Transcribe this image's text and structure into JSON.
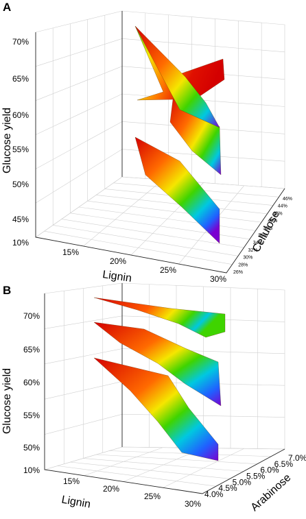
{
  "chart_data": [
    {
      "panel": "A",
      "type": "surface-3d",
      "xlabel": "Lignin",
      "ylabel": "Glucose yield",
      "zlabel": "Cellulose",
      "x_ticks": [
        "15%",
        "20%",
        "25%",
        "30%"
      ],
      "y_ticks": [
        "10%",
        "45%",
        "50%",
        "55%",
        "60%",
        "65%",
        "70%"
      ],
      "z_ticks": [
        "26%",
        "28%",
        "30%",
        "32%",
        "34%",
        "36%",
        "38%",
        "40%",
        "42%",
        "44%",
        "46%"
      ],
      "colormap": [
        "#d40000",
        "#ff7a00",
        "#f5e600",
        "#3fd400",
        "#00c8e0",
        "#2060ff",
        "#7a00d0"
      ],
      "surfaces": [
        {
          "level": "upper",
          "yield_range": [
            58,
            71
          ]
        },
        {
          "level": "middle",
          "yield_range": [
            55,
            63
          ]
        },
        {
          "level": "lower",
          "yield_range": [
            40,
            53
          ]
        }
      ]
    },
    {
      "panel": "B",
      "type": "surface-3d",
      "xlabel": "Lignin",
      "ylabel": "Glucose yield",
      "zlabel": "Arabinose",
      "x_ticks": [
        "15%",
        "20%",
        "25%",
        "30%"
      ],
      "y_ticks": [
        "10%",
        "50%",
        "55%",
        "60%",
        "65%",
        "70%"
      ],
      "z_ticks": [
        "4.0%",
        "4.5%",
        "5.0%",
        "5.5%",
        "6.0%",
        "6.5%",
        "7.0%"
      ],
      "colormap": [
        "#d40000",
        "#ff7a00",
        "#f5e600",
        "#3fd400",
        "#00c8e0",
        "#2060ff",
        "#7a00d0"
      ],
      "surfaces": [
        {
          "level": "upper",
          "yield_range": [
            67,
            71
          ]
        },
        {
          "level": "middle",
          "yield_range": [
            59,
            68
          ]
        },
        {
          "level": "lower",
          "yield_range": [
            49,
            64
          ]
        }
      ]
    }
  ],
  "panels": [
    {
      "letter": "A"
    },
    {
      "letter": "B"
    }
  ]
}
